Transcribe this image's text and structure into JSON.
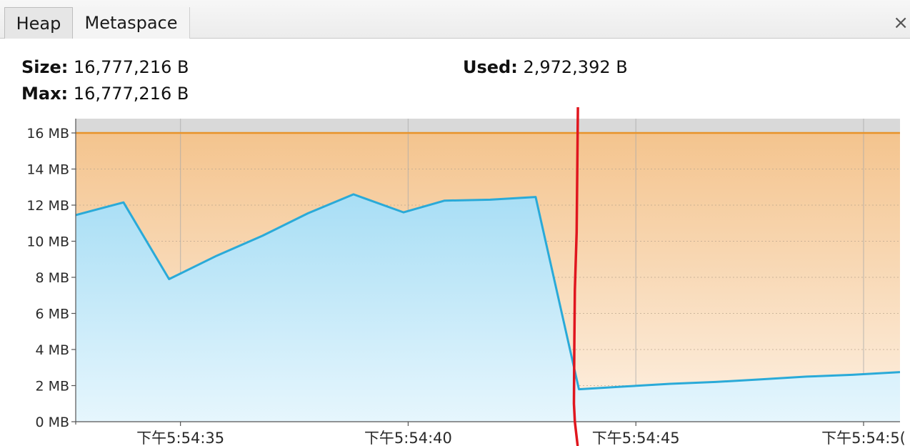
{
  "tabs": [
    {
      "label": "Heap",
      "selected": true
    },
    {
      "label": "Metaspace",
      "selected": false
    }
  ],
  "close_glyph": "×",
  "info": {
    "size_label": "Size:",
    "size_value": "16,777,216 B",
    "max_label": "Max:",
    "max_value": "16,777,216 B",
    "used_label": "Used:",
    "used_value": "2,972,392 B"
  },
  "colors": {
    "used_line": "#2aaad8",
    "max_line": "#e8932a",
    "annotation": "#e0161e"
  },
  "chart_data": {
    "type": "area",
    "title": "",
    "xlabel": "",
    "ylabel": "",
    "ylim": [
      0,
      16.8
    ],
    "y_ticks": [
      0,
      2,
      4,
      6,
      8,
      10,
      12,
      14,
      16
    ],
    "y_tick_labels": [
      "0 MB",
      "2 MB",
      "4 MB",
      "6 MB",
      "8 MB",
      "10 MB",
      "12 MB",
      "14 MB",
      "16 MB"
    ],
    "x_range_seconds": [
      32.7,
      50.8
    ],
    "x_ticks": [
      35,
      40,
      45,
      50
    ],
    "x_tick_labels": [
      "下午5:54:35",
      "下午5:54:40",
      "下午5:54:45",
      "下午5:54:5("
    ],
    "grid": true,
    "series": [
      {
        "role": "used",
        "x": [
          32.7,
          33.75,
          34.75,
          35.8,
          36.8,
          37.8,
          38.8,
          39.9,
          40.8,
          41.8,
          42.8,
          43.75,
          44.75,
          45.75,
          46.75,
          47.75,
          48.75,
          49.75,
          50.8
        ],
        "y": [
          11.45,
          12.15,
          7.9,
          9.2,
          10.3,
          11.55,
          12.6,
          11.6,
          12.25,
          12.3,
          12.45,
          1.8,
          1.95,
          2.1,
          2.2,
          2.35,
          2.5,
          2.6,
          2.75
        ]
      },
      {
        "role": "size",
        "x": [
          32.7,
          50.8
        ],
        "y": [
          16.0,
          16.0
        ]
      }
    ],
    "annotation_line": {
      "x": [
        43.73,
        43.7,
        43.66,
        43.65,
        43.64,
        43.66,
        43.72
      ],
      "y": [
        17.9,
        10.5,
        7.3,
        4.5,
        1.0,
        0.0,
        -1.3
      ]
    }
  }
}
